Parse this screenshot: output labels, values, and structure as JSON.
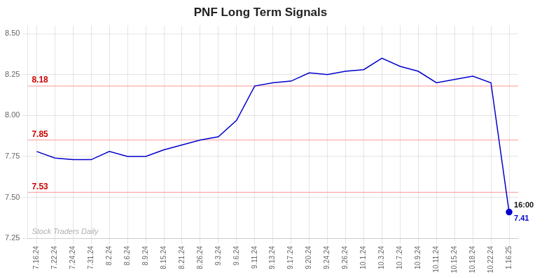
{
  "chart_data": {
    "type": "line",
    "title": "PNF Long Term Signals",
    "title_color": "#222222",
    "categories": [
      "7.16.24",
      "7.22.24",
      "7.24.24",
      "7.31.24",
      "8.2.24",
      "8.6.24",
      "8.9.24",
      "8.15.24",
      "8.21.24",
      "8.26.24",
      "9.3.24",
      "9.6.24",
      "9.11.24",
      "9.13.24",
      "9.17.24",
      "9.20.24",
      "9.24.24",
      "9.26.24",
      "10.1.24",
      "10.3.24",
      "10.7.24",
      "10.9.24",
      "10.11.24",
      "10.15.24",
      "10.18.24",
      "10.22.24",
      "1.16.25"
    ],
    "values": [
      7.78,
      7.74,
      7.73,
      7.73,
      7.78,
      7.75,
      7.75,
      7.79,
      7.82,
      7.85,
      7.87,
      7.97,
      8.18,
      8.2,
      8.21,
      8.26,
      8.25,
      8.27,
      8.28,
      8.35,
      8.3,
      8.27,
      8.2,
      8.22,
      8.24,
      8.2,
      7.41
    ],
    "color": "#0000cc",
    "ylim": [
      7.25,
      8.55
    ],
    "yticks": [
      7.25,
      {
        "value": 7.5,
        "label": "7.50"
      },
      7.75,
      {
        "value": 8.0,
        "label": "8.00"
      },
      8.25,
      {
        "value": 8.5,
        "label": "8.50"
      }
    ],
    "grid": true,
    "hlines": {
      "values": [
        8.18,
        7.85,
        7.53
      ],
      "labels": [
        "8.18",
        "7.85",
        "7.53"
      ],
      "color": "#ffaaaa",
      "label_color": "#cc0000"
    },
    "last_label": {
      "text": "16:00",
      "color": "#111111"
    },
    "last_value_label": {
      "text": "7.41",
      "color": "#0000cc"
    },
    "watermark": {
      "text": "Stock Traders Daily",
      "color": "#b0b0b0"
    }
  }
}
